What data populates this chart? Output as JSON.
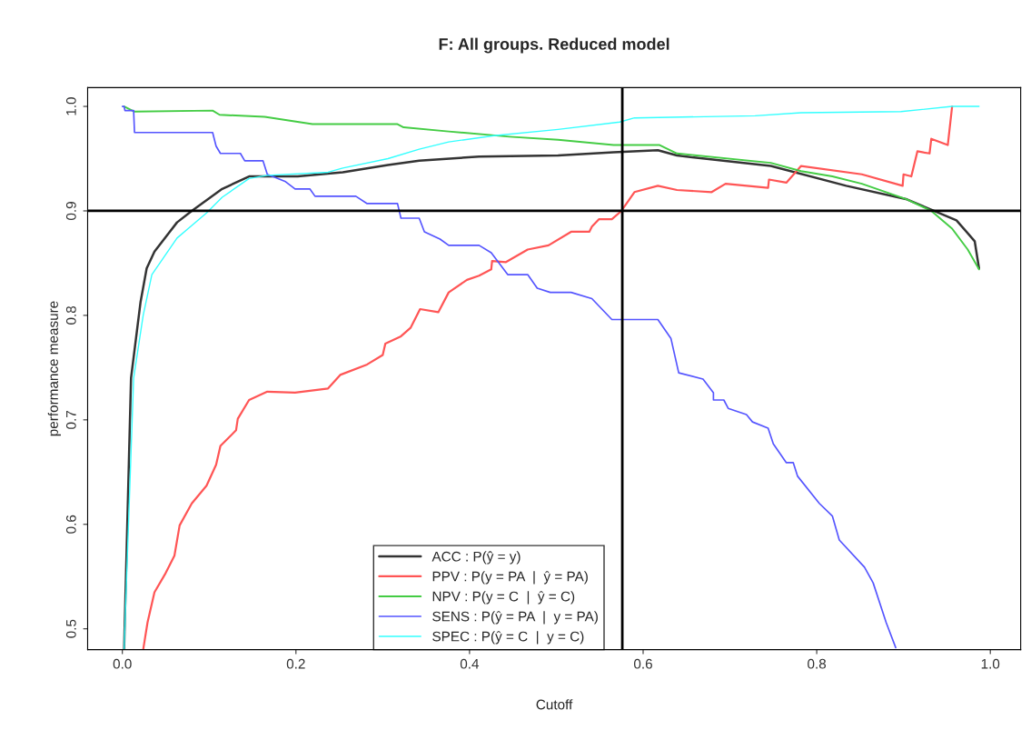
{
  "chart_data": {
    "type": "line",
    "title": "F: All groups. Reduced model",
    "xlabel": "Cutoff",
    "ylabel": "performance measure",
    "xlim": [
      -0.04,
      1.035
    ],
    "ylim": [
      0.48,
      1.018
    ],
    "xticks": [
      {
        "value": 0,
        "label": "0.0"
      },
      0.2,
      0.4,
      0.6,
      0.8,
      {
        "value": 1,
        "label": "1.0"
      }
    ],
    "yticks": [
      0.5,
      0.6,
      0.7,
      0.8,
      0.9,
      {
        "value": 1,
        "label": "1.0"
      }
    ],
    "grid": false,
    "legend": "bottom",
    "line_style": "solid",
    "marker": "none",
    "ref_lines": [
      {
        "axis": "x",
        "value": 0.576,
        "color": "#000000"
      },
      {
        "axis": "y",
        "value": 0.9,
        "color": "#000000"
      }
    ],
    "series": [
      {
        "name": "ACC : P(ŷ = y)",
        "color": "#333333",
        "x": [
          0.002,
          0.01,
          0.021,
          0.028,
          0.037,
          0.063,
          0.08,
          0.115,
          0.146,
          0.202,
          0.254,
          0.306,
          0.342,
          0.411,
          0.502,
          0.566,
          0.617,
          0.639,
          0.747,
          0.834,
          0.904,
          0.935,
          0.961,
          0.982,
          0.987
        ],
        "values": [
          0.48,
          0.74,
          0.813,
          0.845,
          0.861,
          0.889,
          0.9,
          0.921,
          0.933,
          0.933,
          0.937,
          0.944,
          0.948,
          0.952,
          0.953,
          0.956,
          0.958,
          0.953,
          0.943,
          0.924,
          0.911,
          0.9,
          0.891,
          0.871,
          0.845
        ]
      },
      {
        "name": "PPV : P(y = PA  |  ŷ = PA)",
        "color": "#ff5555",
        "x": [
          0.024,
          0.029,
          0.037,
          0.049,
          0.06,
          0.066,
          0.08,
          0.097,
          0.108,
          0.113,
          0.131,
          0.133,
          0.146,
          0.167,
          0.199,
          0.237,
          0.251,
          0.282,
          0.3,
          0.303,
          0.321,
          0.332,
          0.343,
          0.364,
          0.376,
          0.397,
          0.411,
          0.425,
          0.426,
          0.442,
          0.467,
          0.491,
          0.517,
          0.538,
          0.541,
          0.549,
          0.564,
          0.575,
          0.59,
          0.617,
          0.639,
          0.679,
          0.695,
          0.744,
          0.745,
          0.765,
          0.782,
          0.852,
          0.899,
          0.9,
          0.909,
          0.916,
          0.93,
          0.932,
          0.951,
          0.956
        ],
        "values": [
          0.48,
          0.506,
          0.535,
          0.552,
          0.57,
          0.599,
          0.62,
          0.637,
          0.657,
          0.675,
          0.69,
          0.701,
          0.719,
          0.727,
          0.726,
          0.73,
          0.743,
          0.753,
          0.762,
          0.773,
          0.78,
          0.788,
          0.806,
          0.803,
          0.822,
          0.834,
          0.838,
          0.844,
          0.852,
          0.851,
          0.863,
          0.867,
          0.88,
          0.88,
          0.885,
          0.892,
          0.892,
          0.9,
          0.918,
          0.924,
          0.92,
          0.918,
          0.926,
          0.922,
          0.93,
          0.927,
          0.943,
          0.935,
          0.924,
          0.935,
          0.933,
          0.957,
          0.955,
          0.969,
          0.963,
          1.0
        ]
      },
      {
        "name": "NPV : P(y = C  |  ŷ = C)",
        "color": "#44cc44",
        "x": [
          0.002,
          0.014,
          0.104,
          0.112,
          0.164,
          0.219,
          0.317,
          0.324,
          0.376,
          0.446,
          0.502,
          0.566,
          0.619,
          0.639,
          0.747,
          0.782,
          0.818,
          0.852,
          0.904,
          0.932,
          0.956,
          0.974,
          0.987
        ],
        "values": [
          1.0,
          0.995,
          0.996,
          0.992,
          0.99,
          0.983,
          0.983,
          0.98,
          0.976,
          0.971,
          0.968,
          0.963,
          0.963,
          0.955,
          0.946,
          0.938,
          0.933,
          0.926,
          0.911,
          0.9,
          0.883,
          0.863,
          0.844
        ]
      },
      {
        "name": "SENS : P(ŷ = PA  |  y = PA)",
        "color": "#5555ff",
        "x": [
          0,
          0.002,
          0.003,
          0.013,
          0.014,
          0.104,
          0.108,
          0.113,
          0.136,
          0.141,
          0.162,
          0.167,
          0.188,
          0.199,
          0.216,
          0.222,
          0.269,
          0.282,
          0.317,
          0.321,
          0.342,
          0.348,
          0.366,
          0.376,
          0.411,
          0.425,
          0.444,
          0.467,
          0.478,
          0.493,
          0.517,
          0.541,
          0.564,
          0.617,
          0.632,
          0.641,
          0.669,
          0.681,
          0.681,
          0.693,
          0.698,
          0.719,
          0.726,
          0.744,
          0.75,
          0.765,
          0.773,
          0.778,
          0.803,
          0.818,
          0.826,
          0.855,
          0.865,
          0.88,
          0.891
        ],
        "values": [
          1.0,
          1.0,
          0.996,
          0.996,
          0.975,
          0.975,
          0.962,
          0.955,
          0.955,
          0.948,
          0.948,
          0.935,
          0.928,
          0.921,
          0.921,
          0.914,
          0.914,
          0.907,
          0.907,
          0.893,
          0.893,
          0.88,
          0.873,
          0.867,
          0.867,
          0.86,
          0.839,
          0.839,
          0.826,
          0.822,
          0.822,
          0.816,
          0.796,
          0.796,
          0.778,
          0.745,
          0.739,
          0.726,
          0.719,
          0.719,
          0.711,
          0.705,
          0.698,
          0.692,
          0.677,
          0.659,
          0.659,
          0.646,
          0.62,
          0.608,
          0.585,
          0.559,
          0.544,
          0.506,
          0.482
        ]
      },
      {
        "name": "SPEC : P(ŷ = C  |  y = C)",
        "color": "#33ffff",
        "x": [
          0.002,
          0.013,
          0.024,
          0.034,
          0.063,
          0.097,
          0.115,
          0.146,
          0.167,
          0.237,
          0.254,
          0.306,
          0.342,
          0.376,
          0.428,
          0.502,
          0.573,
          0.59,
          0.729,
          0.782,
          0.897,
          0.956,
          0.987
        ],
        "values": [
          0.48,
          0.74,
          0.8,
          0.839,
          0.874,
          0.898,
          0.913,
          0.931,
          0.934,
          0.937,
          0.941,
          0.95,
          0.959,
          0.966,
          0.972,
          0.978,
          0.985,
          0.989,
          0.991,
          0.994,
          0.995,
          1.0,
          1.0
        ]
      }
    ]
  }
}
